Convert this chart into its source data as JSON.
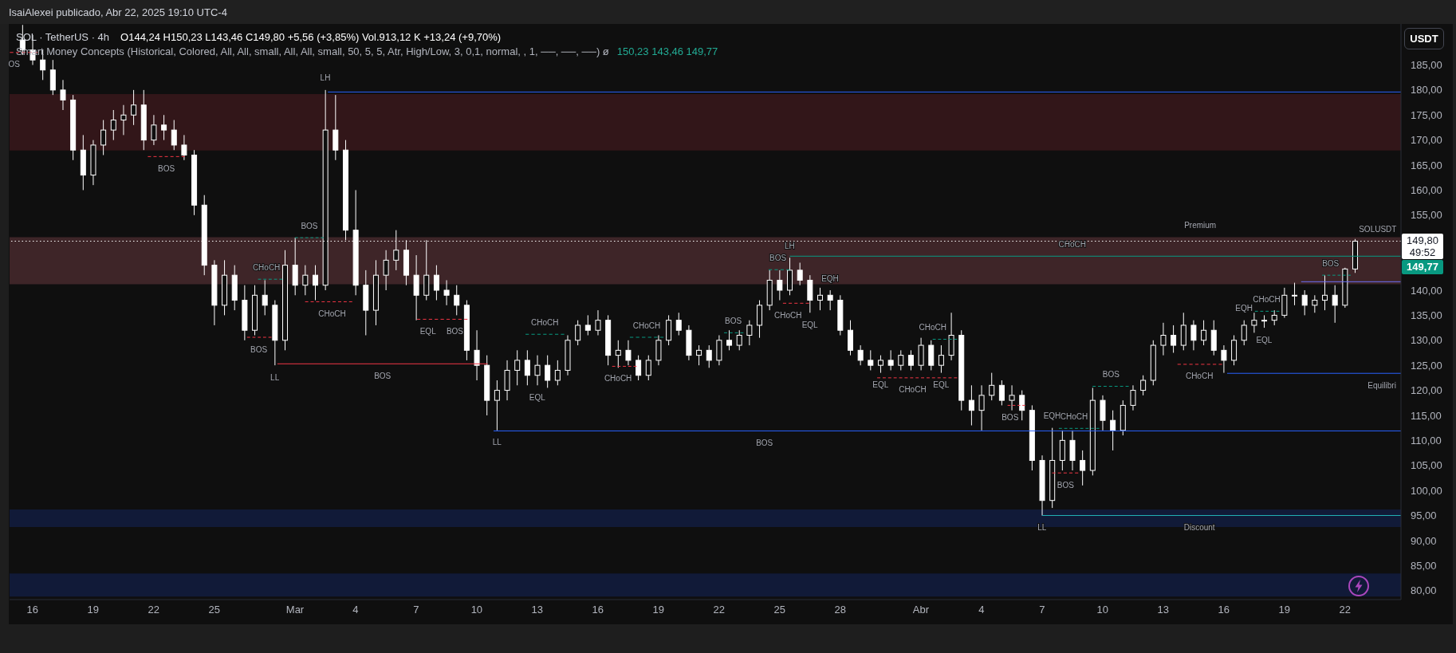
{
  "chart_data": {
    "type": "candlestick",
    "title": "SOL · TetherUS · 4h",
    "subtitle": "O144,24 H150,23 L143,46 C149,80 +5,56 (+3,85%) Vol.913,12 K +13,24 (+9,70%)",
    "ylabel": "USDT",
    "color": "#ffffff",
    "x": [
      "2025-02-15T12:00",
      "2025-02-16T00:00",
      "2025-02-16T12:00",
      "2025-02-17T00:00",
      "2025-02-17T12:00",
      "2025-02-18T00:00",
      "2025-02-18T12:00",
      "2025-02-19T00:00",
      "2025-02-19T12:00",
      "2025-02-20T00:00",
      "2025-02-20T12:00",
      "2025-02-21T00:00",
      "2025-02-21T12:00",
      "2025-02-22T00:00",
      "2025-02-22T12:00",
      "2025-02-23T00:00",
      "2025-02-23T12:00",
      "2025-02-24T00:00",
      "2025-02-24T12:00",
      "2025-02-25T00:00",
      "2025-02-25T12:00",
      "2025-02-26T00:00",
      "2025-02-26T12:00",
      "2025-02-27T00:00",
      "2025-02-27T12:00",
      "2025-02-28T00:00",
      "2025-02-28T12:00",
      "2025-03-01T00:00",
      "2025-03-01T12:00",
      "2025-03-02T00:00",
      "2025-03-02T12:00",
      "2025-03-03T00:00",
      "2025-03-03T12:00",
      "2025-03-04T00:00",
      "2025-03-04T12:00",
      "2025-03-05T00:00",
      "2025-03-05T12:00",
      "2025-03-06T00:00",
      "2025-03-06T12:00",
      "2025-03-07T00:00",
      "2025-03-07T12:00",
      "2025-03-08T00:00",
      "2025-03-08T12:00",
      "2025-03-09T00:00",
      "2025-03-09T12:00",
      "2025-03-10T00:00",
      "2025-03-10T12:00",
      "2025-03-11T00:00",
      "2025-03-11T12:00",
      "2025-03-12T00:00",
      "2025-03-12T12:00",
      "2025-03-13T00:00",
      "2025-03-13T12:00",
      "2025-03-14T00:00",
      "2025-03-14T12:00",
      "2025-03-15T00:00",
      "2025-03-15T12:00",
      "2025-03-16T00:00",
      "2025-03-16T12:00",
      "2025-03-17T00:00",
      "2025-03-17T12:00",
      "2025-03-18T00:00",
      "2025-03-18T12:00",
      "2025-03-19T00:00",
      "2025-03-19T12:00",
      "2025-03-20T00:00",
      "2025-03-20T12:00",
      "2025-03-21T00:00",
      "2025-03-21T12:00",
      "2025-03-22T00:00",
      "2025-03-22T12:00",
      "2025-03-23T00:00",
      "2025-03-23T12:00",
      "2025-03-24T00:00",
      "2025-03-24T12:00",
      "2025-03-25T00:00",
      "2025-03-25T12:00",
      "2025-03-26T00:00",
      "2025-03-26T12:00",
      "2025-03-27T00:00",
      "2025-03-27T12:00",
      "2025-03-28T00:00",
      "2025-03-28T12:00",
      "2025-03-29T00:00",
      "2025-03-29T12:00",
      "2025-03-30T00:00",
      "2025-03-30T12:00",
      "2025-03-31T00:00",
      "2025-03-31T12:00",
      "2025-04-01T00:00",
      "2025-04-01T12:00",
      "2025-04-02T00:00",
      "2025-04-02T12:00",
      "2025-04-03T00:00",
      "2025-04-03T12:00",
      "2025-04-04T00:00",
      "2025-04-04T12:00",
      "2025-04-05T00:00",
      "2025-04-05T12:00",
      "2025-04-06T00:00",
      "2025-04-06T12:00",
      "2025-04-07T00:00",
      "2025-04-07T12:00",
      "2025-04-08T00:00",
      "2025-04-08T12:00",
      "2025-04-09T00:00",
      "2025-04-09T12:00",
      "2025-04-10T00:00",
      "2025-04-10T12:00",
      "2025-04-11T00:00",
      "2025-04-11T12:00",
      "2025-04-12T00:00",
      "2025-04-12T12:00",
      "2025-04-13T00:00",
      "2025-04-13T12:00",
      "2025-04-14T00:00",
      "2025-04-14T12:00",
      "2025-04-15T00:00",
      "2025-04-15T12:00",
      "2025-04-16T00:00",
      "2025-04-16T12:00",
      "2025-04-17T00:00",
      "2025-04-17T12:00",
      "2025-04-18T00:00",
      "2025-04-18T12:00",
      "2025-04-19T00:00",
      "2025-04-19T12:00",
      "2025-04-20T00:00",
      "2025-04-20T12:00",
      "2025-04-21T00:00",
      "2025-04-21T12:00",
      "2025-04-22T00:00",
      "2025-04-22T12:00"
    ],
    "ohlc": [
      [
        190,
        193,
        187,
        188
      ],
      [
        188,
        191,
        185,
        186
      ],
      [
        186,
        188,
        182,
        184
      ],
      [
        184,
        186,
        179,
        180
      ],
      [
        180,
        182,
        176,
        178
      ],
      [
        178,
        179,
        166,
        168
      ],
      [
        168,
        171,
        160,
        163
      ],
      [
        163,
        170,
        161,
        169
      ],
      [
        169,
        174,
        167,
        172
      ],
      [
        172,
        176,
        170,
        174
      ],
      [
        174,
        177,
        171,
        175
      ],
      [
        175,
        180,
        173,
        177
      ],
      [
        177,
        180,
        168,
        170
      ],
      [
        170,
        175,
        169,
        173
      ],
      [
        173,
        175,
        170,
        172
      ],
      [
        172,
        174,
        168,
        169
      ],
      [
        169,
        171,
        166,
        167
      ],
      [
        167,
        168,
        155,
        157
      ],
      [
        157,
        159,
        143,
        145
      ],
      [
        145,
        146,
        133,
        137
      ],
      [
        137,
        146,
        135,
        143
      ],
      [
        143,
        145,
        136,
        138
      ],
      [
        138,
        141,
        130,
        132
      ],
      [
        132,
        141,
        131,
        139
      ],
      [
        139,
        142,
        135,
        137
      ],
      [
        137,
        138,
        125,
        130
      ],
      [
        130,
        148,
        128,
        145
      ],
      [
        145,
        150.5,
        139,
        141
      ],
      [
        141,
        145,
        139,
        143
      ],
      [
        143,
        145,
        138,
        141
      ],
      [
        141,
        180,
        140,
        172
      ],
      [
        172,
        179,
        166,
        168
      ],
      [
        168,
        170,
        150,
        152
      ],
      [
        152,
        160,
        139,
        141
      ],
      [
        141,
        144,
        131,
        136
      ],
      [
        136,
        146,
        133,
        143
      ],
      [
        143,
        148,
        140,
        146
      ],
      [
        146,
        152,
        144,
        148
      ],
      [
        148,
        150,
        141,
        143
      ],
      [
        143,
        147,
        134,
        139
      ],
      [
        139,
        150,
        138,
        143
      ],
      [
        143,
        145,
        138,
        140
      ],
      [
        140,
        142,
        137,
        139
      ],
      [
        139,
        141,
        135,
        137
      ],
      [
        137,
        138,
        126,
        128
      ],
      [
        128,
        132,
        122,
        125
      ],
      [
        125,
        127,
        115,
        118
      ],
      [
        118,
        122,
        112,
        120
      ],
      [
        120,
        126,
        118,
        124
      ],
      [
        124,
        128,
        121,
        126
      ],
      [
        126,
        128,
        121,
        123
      ],
      [
        123,
        127,
        121,
        125
      ],
      [
        125,
        127,
        120.5,
        122
      ],
      [
        122,
        126,
        121,
        124
      ],
      [
        124,
        131,
        123,
        130
      ],
      [
        130,
        134,
        129,
        133
      ],
      [
        133,
        135,
        131,
        132
      ],
      [
        132,
        136,
        131,
        134
      ],
      [
        134,
        135,
        125,
        127
      ],
      [
        127,
        130,
        124.5,
        128
      ],
      [
        128,
        130,
        125,
        126
      ],
      [
        126,
        127,
        122,
        123
      ],
      [
        123,
        127,
        122,
        126
      ],
      [
        126,
        131,
        125,
        130
      ],
      [
        130,
        135,
        129,
        134
      ],
      [
        134,
        135.5,
        131,
        132
      ],
      [
        132,
        133,
        126,
        127
      ],
      [
        127,
        129,
        125,
        128
      ],
      [
        128,
        129,
        124.5,
        126
      ],
      [
        126,
        131,
        125,
        130
      ],
      [
        130,
        132,
        128,
        129
      ],
      [
        129,
        132,
        128,
        131
      ],
      [
        131,
        134,
        129,
        133
      ],
      [
        133,
        138,
        130.5,
        137
      ],
      [
        137,
        144,
        136,
        142
      ],
      [
        142,
        144,
        138,
        140
      ],
      [
        140,
        146.5,
        139,
        144
      ],
      [
        144,
        145.5,
        141,
        142
      ],
      [
        142,
        143,
        135.5,
        138
      ],
      [
        138,
        140.5,
        136,
        139
      ],
      [
        139,
        140,
        136,
        138
      ],
      [
        138,
        139,
        131,
        132
      ],
      [
        132,
        134,
        127,
        128
      ],
      [
        128,
        129,
        125,
        126
      ],
      [
        126,
        128,
        124,
        125
      ],
      [
        125,
        127,
        123.5,
        126
      ],
      [
        126,
        128,
        124,
        125
      ],
      [
        125,
        128,
        124,
        127
      ],
      [
        127,
        128,
        124,
        125
      ],
      [
        125,
        130.5,
        124,
        129
      ],
      [
        129,
        130,
        124,
        125
      ],
      [
        125,
        129,
        123.5,
        127
      ],
      [
        127,
        135.5,
        126,
        131
      ],
      [
        131,
        132,
        116,
        118
      ],
      [
        118,
        121,
        113,
        116
      ],
      [
        116,
        121,
        112,
        119
      ],
      [
        119,
        123.5,
        118,
        121
      ],
      [
        121,
        122,
        117,
        118
      ],
      [
        118,
        121,
        116,
        119
      ],
      [
        119,
        120,
        114,
        116
      ],
      [
        116,
        117,
        104,
        106
      ],
      [
        106,
        107,
        95,
        98
      ],
      [
        98,
        112.5,
        96.5,
        106
      ],
      [
        106,
        112,
        104,
        110
      ],
      [
        110,
        112,
        104,
        106
      ],
      [
        106,
        108,
        101,
        104
      ],
      [
        104,
        120.5,
        103,
        118
      ],
      [
        118,
        119,
        112,
        114
      ],
      [
        114,
        116,
        108,
        112
      ],
      [
        112,
        118,
        111,
        117
      ],
      [
        117,
        121,
        116,
        120
      ],
      [
        120,
        123,
        119,
        122
      ],
      [
        122,
        130,
        121,
        129
      ],
      [
        129,
        133.5,
        127,
        131
      ],
      [
        131,
        133,
        127.5,
        129
      ],
      [
        129,
        135.5,
        128,
        133
      ],
      [
        133,
        134,
        128,
        130
      ],
      [
        130,
        134,
        129,
        132
      ],
      [
        132,
        134,
        127,
        128
      ],
      [
        128,
        129,
        123.5,
        126
      ],
      [
        126,
        131,
        125,
        130
      ],
      [
        130,
        134,
        129,
        133
      ],
      [
        133,
        135.5,
        131.5,
        134
      ],
      [
        134,
        135,
        132.5,
        134
      ],
      [
        134,
        136,
        133,
        135
      ],
      [
        135,
        140.5,
        134.5,
        139
      ],
      [
        139,
        141.5,
        137,
        139
      ],
      [
        139,
        140,
        135,
        137
      ],
      [
        137,
        139,
        135.5,
        138
      ],
      [
        138,
        143,
        136,
        139
      ],
      [
        139,
        141,
        133.5,
        137
      ],
      [
        137,
        144.5,
        136.5,
        144.24
      ],
      [
        144.24,
        150.23,
        143.46,
        149.8
      ]
    ],
    "series": [
      {
        "type": "line",
        "color": "#f23645",
        "line_style": "dashed",
        "x": [
          "2025-02-14T21:00",
          "2025-02-16T06:00"
        ],
        "values": [
          187.5,
          187.5
        ]
      },
      {
        "type": "line",
        "color": "#f23645",
        "line_style": "dashed",
        "x": [
          "2025-02-21T17:00",
          "2025-02-23T13:00"
        ],
        "values": [
          166.7,
          166.7
        ]
      },
      {
        "type": "line",
        "color": "#089981",
        "line_style": "dashed",
        "x": [
          "2025-03-01T00:00",
          "2025-03-02T10:00"
        ],
        "values": [
          150.5,
          150.5
        ]
      },
      {
        "type": "line",
        "color": "#089981",
        "line_style": "dashed",
        "x": [
          "2025-02-27T04:00",
          "2025-02-28T09:00"
        ],
        "values": [
          142.2,
          142.2
        ]
      },
      {
        "type": "line",
        "color": "#f23645",
        "line_style": "dashed",
        "x": [
          "2025-03-01T12:00",
          "2025-03-03T20:00"
        ],
        "values": [
          137.7,
          137.7
        ]
      },
      {
        "type": "line",
        "color": "#f23645",
        "line_style": "dashed",
        "x": [
          "2025-03-07T01:00",
          "2025-03-09T13:00"
        ],
        "values": [
          134.2,
          134.2
        ]
      },
      {
        "type": "line",
        "color": "#f23645",
        "line_style": "dashed",
        "x": [
          "2025-02-26T15:00",
          "2025-02-27T20:00"
        ],
        "values": [
          130.6,
          130.6
        ]
      },
      {
        "type": "line",
        "color": "#f23645",
        "line_style": "solid",
        "x": [
          "2025-02-28T03:00",
          "2025-03-10T13:00"
        ],
        "values": [
          125.3,
          125.3
        ]
      },
      {
        "type": "line",
        "color": "#2962ff",
        "line_style": "solid",
        "x": [
          "2025-03-10T20:00",
          "2025-04-24T18:40"
        ],
        "values": [
          111.9,
          111.9
        ]
      },
      {
        "type": "line",
        "color": "#089981",
        "line_style": "dashed",
        "x": [
          "2025-03-12T10:00",
          "2025-03-14T08:00"
        ],
        "values": [
          131.2,
          131.2
        ]
      },
      {
        "type": "line",
        "color": "#f23645",
        "line_style": "dashed",
        "x": [
          "2025-03-16T17:00",
          "2025-03-17T22:00"
        ],
        "values": [
          124.8,
          124.8
        ]
      },
      {
        "type": "line",
        "color": "#089981",
        "line_style": "dashed",
        "x": [
          "2025-03-17T14:00",
          "2025-03-19T06:00"
        ],
        "values": [
          130.6,
          130.6
        ]
      },
      {
        "type": "line",
        "color": "#089981",
        "line_style": "dashed",
        "x": [
          "2025-03-22T06:00",
          "2025-03-23T05:00"
        ],
        "values": [
          131.5,
          131.5
        ]
      },
      {
        "type": "line",
        "color": "#089981",
        "line_style": "dashed",
        "x": [
          "2025-03-24T11:00",
          "2025-03-25T12:00"
        ],
        "values": [
          144.1,
          144.1
        ]
      },
      {
        "type": "line",
        "color": "#089981",
        "line_style": "solid",
        "x": [
          "2025-03-25T12:00",
          "2025-04-24T18:40"
        ],
        "values": [
          146.8,
          146.8
        ]
      },
      {
        "type": "line",
        "color": "#f23645",
        "line_style": "dashed",
        "x": [
          "2025-03-25T04:00",
          "2025-03-26T11:00"
        ],
        "values": [
          137.4,
          137.4
        ]
      },
      {
        "type": "line",
        "color": "#f23645",
        "line_style": "dashed",
        "x": [
          "2025-03-29T20:00",
          "2025-04-02T19:00"
        ],
        "values": [
          122.5,
          122.5
        ]
      },
      {
        "type": "line",
        "color": "#089981",
        "line_style": "dashed",
        "x": [
          "2025-04-01T14:00",
          "2025-04-02T19:00"
        ],
        "values": [
          130.2,
          130.2
        ]
      },
      {
        "type": "line",
        "color": "#f23645",
        "line_style": "dashed",
        "x": [
          "2025-04-05T07:00",
          "2025-04-06T04:00"
        ],
        "values": [
          117.0,
          117.0
        ]
      },
      {
        "type": "line",
        "color": "#f23645",
        "line_style": "dashed",
        "x": [
          "2025-04-07T12:00",
          "2025-04-08T19:00"
        ],
        "values": [
          103.5,
          103.5
        ]
      },
      {
        "type": "line",
        "color": "#089981",
        "line_style": "dashed",
        "x": [
          "2025-04-07T20:00",
          "2025-04-09T20:00"
        ],
        "values": [
          112.4,
          112.4
        ]
      },
      {
        "type": "line",
        "color": "#089981",
        "line_style": "dashed",
        "x": [
          "2025-04-09T12:00",
          "2025-04-11T07:00"
        ],
        "values": [
          120.8,
          120.8
        ]
      },
      {
        "type": "line",
        "color": "#f23645",
        "line_style": "dashed",
        "x": [
          "2025-04-13T17:00",
          "2025-04-15T22:00"
        ],
        "values": [
          125.2,
          125.2
        ]
      },
      {
        "type": "line",
        "color": "#2962ff",
        "line_style": "solid",
        "x": [
          "2025-04-16T04:00",
          "2025-04-24T18:40"
        ],
        "values": [
          123.4,
          123.4
        ]
      },
      {
        "type": "line",
        "color": "#089981",
        "line_style": "dashed",
        "x": [
          "2025-04-17T13:00",
          "2025-04-18T18:00"
        ],
        "values": [
          135.8,
          135.8
        ]
      },
      {
        "type": "line",
        "color": "#089981",
        "line_style": "dashed",
        "x": [
          "2025-04-20T21:00",
          "2025-04-22T07:00"
        ],
        "values": [
          143.0,
          143.0
        ]
      },
      {
        "type": "line",
        "color": "#6b6ff5",
        "line_style": "solid",
        "x": [
          "2025-04-19T20:00",
          "2025-04-24T18:40"
        ],
        "values": [
          141.7,
          141.7
        ]
      },
      {
        "type": "line",
        "color": "#22b2b5",
        "line_style": "solid",
        "x": [
          "2025-04-07T00:00",
          "2025-04-24T18:40"
        ],
        "values": [
          95.0,
          95.0
        ]
      },
      {
        "type": "line",
        "color": "#2962ff",
        "line_style": "solid",
        "x": [
          "2025-03-02T15:00",
          "2025-04-24T18:40"
        ],
        "values": [
          179.6,
          179.6
        ]
      }
    ],
    "xlim": [
      "2025-02-14T20:40",
      "2025-04-24T18:40"
    ],
    "xticks": [
      {
        "value": "2025-02-16",
        "label": "16"
      },
      {
        "value": "2025-02-19",
        "label": "19"
      },
      {
        "value": "2025-02-22",
        "label": "22"
      },
      {
        "value": "2025-02-25",
        "label": "25"
      },
      {
        "value": "2025-03-01",
        "label": "Mar"
      },
      {
        "value": "2025-03-04",
        "label": "4"
      },
      {
        "value": "2025-03-07",
        "label": "7"
      },
      {
        "value": "2025-03-10",
        "label": "10"
      },
      {
        "value": "2025-03-13",
        "label": "13"
      },
      {
        "value": "2025-03-16",
        "label": "16"
      },
      {
        "value": "2025-03-19",
        "label": "19"
      },
      {
        "value": "2025-03-22",
        "label": "22"
      },
      {
        "value": "2025-03-25",
        "label": "25"
      },
      {
        "value": "2025-03-28",
        "label": "28"
      },
      {
        "value": "2025-04-01",
        "label": "Abr"
      },
      {
        "value": "2025-04-04",
        "label": "4"
      },
      {
        "value": "2025-04-07",
        "label": "7"
      },
      {
        "value": "2025-04-10",
        "label": "10"
      },
      {
        "value": "2025-04-13",
        "label": "13"
      },
      {
        "value": "2025-04-16",
        "label": "16"
      },
      {
        "value": "2025-04-19",
        "label": "19"
      },
      {
        "value": "2025-04-22",
        "label": "22"
      }
    ],
    "ylim": [
      78.2,
      193.2
    ],
    "yticks": [
      {
        "value": 80,
        "label": "80,00"
      },
      {
        "value": 85,
        "label": "85,00"
      },
      {
        "value": 90,
        "label": "90,00"
      },
      {
        "value": 95,
        "label": "95,00"
      },
      {
        "value": 100,
        "label": "100,00"
      },
      {
        "value": 105,
        "label": "105,00"
      },
      {
        "value": 110,
        "label": "110,00"
      },
      {
        "value": 115,
        "label": "115,00"
      },
      {
        "value": 120,
        "label": "120,00"
      },
      {
        "value": 125,
        "label": "125,00"
      },
      {
        "value": 130,
        "label": "130,00"
      },
      {
        "value": 135,
        "label": "135,00"
      },
      {
        "value": 140,
        "label": "140,00"
      },
      {
        "value": 155,
        "label": "155,00"
      },
      {
        "value": 160,
        "label": "160,00"
      },
      {
        "value": 165,
        "label": "165,00"
      },
      {
        "value": 170,
        "label": "170,00"
      },
      {
        "value": 175,
        "label": "175,00"
      },
      {
        "value": 180,
        "label": "180,00"
      },
      {
        "value": 185,
        "label": "185,00"
      }
    ],
    "bands": [
      {
        "axis": "y",
        "from": 167.9,
        "to": 179.2,
        "color": "#321619"
      },
      {
        "axis": "y",
        "from": 141.2,
        "to": 150.6,
        "color": "#3e2528"
      },
      {
        "axis": "y",
        "from": 92.7,
        "to": 96.2,
        "color": "#111a38"
      },
      {
        "axis": "y",
        "from": 78.8,
        "to": 83.4,
        "color": "#111a38"
      }
    ],
    "ref_lines": [
      {
        "axis": "y",
        "value": 149.8,
        "label": "149,80 49:52",
        "color": "#ffffff",
        "line_style": "dotted"
      }
    ],
    "annotations": [
      "IsaiAlexei publicado, Abr 22, 2025 19:10 UTC-4",
      "Smart Money Concepts (Historical, Colored, All, All, small, All, All, small, 50, 5, 5, Atr, High/Low, 3, 0,1, normal, , 1, ──, ──, ──) ø",
      "150,23  143,46  149,77",
      "149,77",
      {
        "text": "OS",
        "x": "2025-02-15T02:00",
        "y": 187.5
      },
      {
        "text": "LH",
        "x": "2025-03-02T12:00",
        "y": 180
      },
      {
        "text": "BOS",
        "x": "2025-02-22T15:00",
        "y": 166.7
      },
      {
        "text": "BOS",
        "x": "2025-03-01T17:00",
        "y": 150.5
      },
      {
        "text": "CHoCH",
        "x": "2025-02-27T14:00",
        "y": 142.2
      },
      {
        "text": "CHoCH",
        "x": "2025-03-02T20:00",
        "y": 137.7
      },
      {
        "text": "EQL",
        "x": "2025-03-07T14:00",
        "y": 134.2
      },
      {
        "text": "BOS",
        "x": "2025-03-08T22:00",
        "y": 134.2
      },
      {
        "text": "BOS",
        "x": "2025-02-27T05:00",
        "y": 130.6
      },
      {
        "text": "LL",
        "x": "2025-02-28T00:00",
        "y": 125
      },
      {
        "text": "BOS",
        "x": "2025-03-05T08:00",
        "y": 125.3
      },
      {
        "text": "LL",
        "x": "2025-03-11T00:00",
        "y": 112
      },
      {
        "text": "EQL",
        "x": "2025-03-13T00:00",
        "y": 121
      },
      {
        "text": "CHoCH",
        "x": "2025-03-13T09:00",
        "y": 131.2
      },
      {
        "text": "CHoCH",
        "x": "2025-03-17T00:00",
        "y": 124.8
      },
      {
        "text": "CHoCH",
        "x": "2025-03-18T10:00",
        "y": 130.6
      },
      {
        "text": "BOS",
        "x": "2025-03-22T17:00",
        "y": 131.5
      },
      {
        "text": "BOS",
        "x": "2025-03-24T06:00",
        "y": 111.9
      },
      {
        "text": "LH",
        "x": "2025-03-25T12:00",
        "y": 146.5
      },
      {
        "text": "BOS",
        "x": "2025-03-24T22:00",
        "y": 144.1
      },
      {
        "text": "EQH",
        "x": "2025-03-27T12:00",
        "y": 140
      },
      {
        "text": "CHoCH",
        "x": "2025-03-25T10:00",
        "y": 137.4
      },
      {
        "text": "EQL",
        "x": "2025-03-26T12:00",
        "y": 135.5
      },
      {
        "text": "CHoCH",
        "x": "2025-04-01T14:00",
        "y": 130.2
      },
      {
        "text": "EQL",
        "x": "2025-03-30T00:00",
        "y": 123.5
      },
      {
        "text": "CHoCH",
        "x": "2025-03-31T14:00",
        "y": 122.5
      },
      {
        "text": "EQL",
        "x": "2025-04-02T00:00",
        "y": 123.5
      },
      {
        "text": "BOS",
        "x": "2025-04-05T10:00",
        "y": 117.0
      },
      {
        "text": "EQH",
        "x": "2025-04-07T12:00",
        "y": 112.5
      },
      {
        "text": "CHoCH",
        "x": "2025-04-08T14:00",
        "y": 112.4
      },
      {
        "text": "BOS",
        "x": "2025-04-08T04:00",
        "y": 103.5
      },
      {
        "text": "LL",
        "x": "2025-04-07T00:00",
        "y": 95
      },
      {
        "text": "BOS",
        "x": "2025-04-10T10:00",
        "y": 120.8
      },
      {
        "text": "CHoCH",
        "x": "2025-04-14T19:00",
        "y": 125.2
      },
      {
        "text": "Discount",
        "x": "2025-04-14T19:00",
        "y": 95
      },
      {
        "text": "Equilibri",
        "x": "2025-04-23T20:00",
        "y": 123.4
      },
      {
        "text": "EQL",
        "x": "2025-04-18T00:00",
        "y": 132.5
      },
      {
        "text": "EQH",
        "x": "2025-04-17T00:00",
        "y": 134
      },
      {
        "text": "CHoCH",
        "x": "2025-04-18T03:00",
        "y": 135.8
      },
      {
        "text": "BOS",
        "x": "2025-04-21T07:00",
        "y": 143.0
      },
      {
        "text": "Premium",
        "x": "2025-04-14T20:00",
        "y": 150.6
      },
      {
        "text": "CHoCH",
        "x": "2025-04-08T12:00",
        "y": 146.8
      },
      {
        "text": "SOLUSDT",
        "x": "2025-04-23T15:00",
        "y": 149.8
      }
    ]
  }
}
